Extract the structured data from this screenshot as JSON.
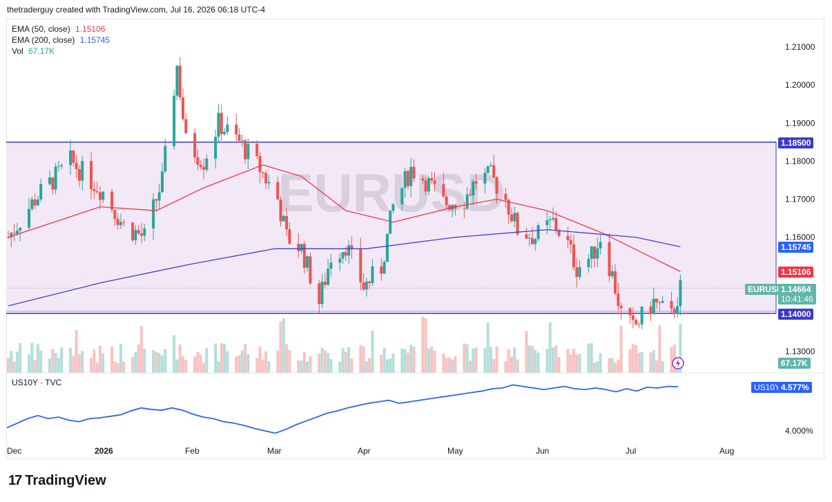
{
  "header": "thetraderguy created with TradingView.com, Jul 16, 2026 06:18 UTC-4",
  "watermark": "EURUSD",
  "brand": "TradingView",
  "legend": [
    {
      "label": "EMA (50, close)",
      "value": "1.15106",
      "color": "#f23645"
    },
    {
      "label": "EMA (200, close)",
      "value": "1.15745",
      "color": "#2962ff"
    },
    {
      "label": "Vol",
      "value": "67.17K",
      "color": "#22ab94"
    }
  ],
  "price_tags": {
    "upper_line": "1.18500",
    "ema200": "1.15745",
    "ema50": "1.15106",
    "symbol": "EURUSD",
    "last": "1.14664",
    "countdown": "10:41:46",
    "lower_line": "1.14000",
    "volume": "67.17K"
  },
  "pane2": {
    "title": "US10Y · TVC",
    "symbol": "US10Y",
    "last": "4.577%"
  },
  "colors": {
    "up": "#26a69a",
    "down": "#ef5350",
    "ema50": "#f23645",
    "ema200": "#3c3cd9",
    "range": "#3a3acb",
    "range_fill": "#f3e8f6",
    "us10y": "#2962ff"
  },
  "chart_data": [
    {
      "type": "candlestick",
      "symbol": "EURUSD",
      "interval": "1D",
      "y_ticks": [
        "1.21000",
        "1.20000",
        "1.19000",
        "1.18000",
        "1.17000",
        "1.16000",
        "1.13000"
      ],
      "ylim": [
        1.124,
        1.214
      ],
      "x_ticks": [
        "Dec",
        "2026",
        "Feb",
        "Mar",
        "Apr",
        "May",
        "Jun",
        "Jul",
        "Aug"
      ],
      "horizontal_lines": [
        1.185,
        1.14
      ],
      "shaded_range": [
        1.14,
        1.185
      ],
      "ohlc_anchors": [
        {
          "x": "2025-12-01",
          "close": 1.16
        },
        {
          "x": "2025-12-10",
          "close": 1.17
        },
        {
          "x": "2025-12-22",
          "close": 1.18
        },
        {
          "x": "2026-01-02",
          "close": 1.172
        },
        {
          "x": "2026-01-09",
          "close": 1.163
        },
        {
          "x": "2026-01-16",
          "close": 1.16
        },
        {
          "x": "2026-01-22",
          "close": 1.175
        },
        {
          "x": "2026-01-27",
          "close": 1.205
        },
        {
          "x": "2026-01-30",
          "close": 1.185
        },
        {
          "x": "2026-02-05",
          "close": 1.18
        },
        {
          "x": "2026-02-10",
          "close": 1.19
        },
        {
          "x": "2026-02-17",
          "close": 1.185
        },
        {
          "x": "2026-02-24",
          "close": 1.178
        },
        {
          "x": "2026-03-02",
          "close": 1.17
        },
        {
          "x": "2026-03-05",
          "close": 1.16
        },
        {
          "x": "2026-03-10",
          "close": 1.157
        },
        {
          "x": "2026-03-16",
          "close": 1.143
        },
        {
          "x": "2026-03-20",
          "close": 1.155
        },
        {
          "x": "2026-03-25",
          "close": 1.158
        },
        {
          "x": "2026-03-31",
          "close": 1.147
        },
        {
          "x": "2026-04-06",
          "close": 1.152
        },
        {
          "x": "2026-04-10",
          "close": 1.168
        },
        {
          "x": "2026-04-16",
          "close": 1.178
        },
        {
          "x": "2026-04-21",
          "close": 1.175
        },
        {
          "x": "2026-04-27",
          "close": 1.169
        },
        {
          "x": "2026-05-04",
          "close": 1.17
        },
        {
          "x": "2026-05-08",
          "close": 1.175
        },
        {
          "x": "2026-05-13",
          "close": 1.176
        },
        {
          "x": "2026-05-18",
          "close": 1.17
        },
        {
          "x": "2026-05-22",
          "close": 1.162
        },
        {
          "x": "2026-05-28",
          "close": 1.16
        },
        {
          "x": "2026-06-03",
          "close": 1.164
        },
        {
          "x": "2026-06-08",
          "close": 1.158
        },
        {
          "x": "2026-06-11",
          "close": 1.152
        },
        {
          "x": "2026-06-16",
          "close": 1.155
        },
        {
          "x": "2026-06-19",
          "close": 1.16
        },
        {
          "x": "2026-06-23",
          "close": 1.15
        },
        {
          "x": "2026-06-26",
          "close": 1.14
        },
        {
          "x": "2026-06-30",
          "close": 1.136
        },
        {
          "x": "2026-07-03",
          "close": 1.139
        },
        {
          "x": "2026-07-07",
          "close": 1.143
        },
        {
          "x": "2026-07-10",
          "close": 1.141
        },
        {
          "x": "2026-07-13",
          "close": 1.139
        },
        {
          "x": "2026-07-16",
          "close": 1.1466
        }
      ],
      "ema50": [
        {
          "x": "2025-12-01",
          "y": 1.16
        },
        {
          "x": "2026-01-01",
          "y": 1.168
        },
        {
          "x": "2026-01-20",
          "y": 1.167
        },
        {
          "x": "2026-02-05",
          "y": 1.173
        },
        {
          "x": "2026-02-25",
          "y": 1.179
        },
        {
          "x": "2026-03-10",
          "y": 1.176
        },
        {
          "x": "2026-03-25",
          "y": 1.167
        },
        {
          "x": "2026-04-10",
          "y": 1.164
        },
        {
          "x": "2026-05-01",
          "y": 1.168
        },
        {
          "x": "2026-05-15",
          "y": 1.17
        },
        {
          "x": "2026-06-01",
          "y": 1.167
        },
        {
          "x": "2026-06-20",
          "y": 1.161
        },
        {
          "x": "2026-07-16",
          "y": 1.151
        }
      ],
      "ema200": [
        {
          "x": "2025-12-01",
          "y": 1.142
        },
        {
          "x": "2026-01-01",
          "y": 1.148
        },
        {
          "x": "2026-02-01",
          "y": 1.153
        },
        {
          "x": "2026-03-01",
          "y": 1.157
        },
        {
          "x": "2026-04-01",
          "y": 1.157
        },
        {
          "x": "2026-05-01",
          "y": 1.16
        },
        {
          "x": "2026-06-01",
          "y": 1.162
        },
        {
          "x": "2026-07-01",
          "y": 1.16
        },
        {
          "x": "2026-07-16",
          "y": 1.1575
        }
      ]
    },
    {
      "type": "line",
      "symbol": "US10Y",
      "y_ticks": [
        "4.000%"
      ],
      "ylim": [
        3.95,
        4.63
      ],
      "series": [
        {
          "values": [
            4.04,
            4.1,
            4.16,
            4.2,
            4.16,
            4.18,
            4.14,
            4.12,
            4.16,
            4.17,
            4.19,
            4.21,
            4.26,
            4.3,
            4.28,
            4.27,
            4.3,
            4.27,
            4.22,
            4.18,
            4.16,
            4.12,
            4.1,
            4.07,
            4.03,
            4.0,
            3.97,
            4.02,
            4.08,
            4.13,
            4.18,
            4.23,
            4.26,
            4.3,
            4.33,
            4.36,
            4.38,
            4.4,
            4.36,
            4.38,
            4.4,
            4.42,
            4.44,
            4.46,
            4.48,
            4.5,
            4.52,
            4.55,
            4.56,
            4.6,
            4.58,
            4.56,
            4.54,
            4.56,
            4.58,
            4.55,
            4.54,
            4.56,
            4.54,
            4.51,
            4.55,
            4.52,
            4.57,
            4.56,
            4.58,
            4.577
          ]
        }
      ]
    }
  ]
}
